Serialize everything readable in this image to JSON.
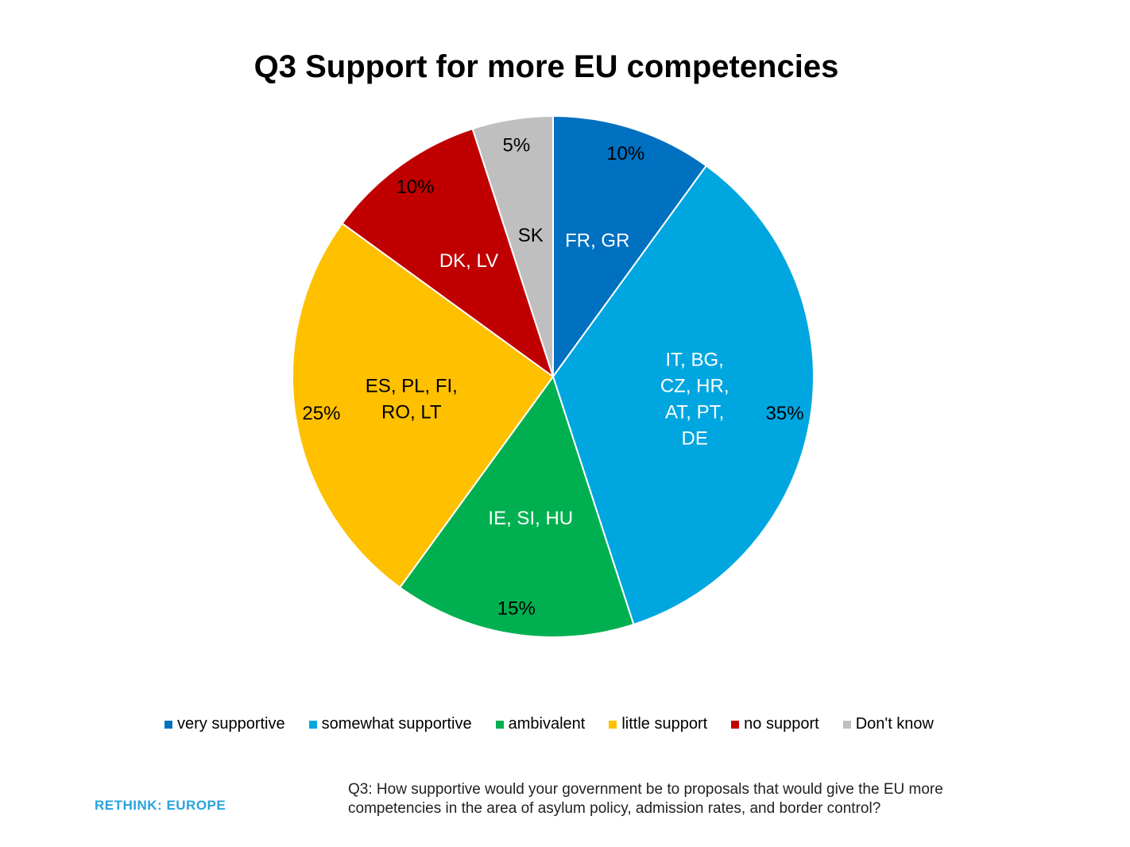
{
  "chart_data": {
    "type": "pie",
    "title": "Q3 Support for more EU competencies",
    "slices": [
      {
        "label": "very supportive",
        "value": 10,
        "value_label": "10%",
        "countries": [
          "FR, GR"
        ],
        "color": "#0070c0",
        "text_color": "#ffffff"
      },
      {
        "label": "somewhat supportive",
        "value": 35,
        "value_label": "35%",
        "countries": [
          "IT, BG,",
          "CZ, HR,",
          "AT, PT,",
          "DE"
        ],
        "color": "#00a6e0",
        "text_color": "#ffffff"
      },
      {
        "label": "ambivalent",
        "value": 15,
        "value_label": "15%",
        "countries": [
          "IE, SI, HU"
        ],
        "color": "#00b050",
        "text_color": "#ffffff"
      },
      {
        "label": "little support",
        "value": 25,
        "value_label": "25%",
        "countries": [
          "ES, PL, FI,",
          "RO, LT"
        ],
        "color": "#ffc000",
        "text_color": "#000000"
      },
      {
        "label": "no support",
        "value": 10,
        "value_label": "10%",
        "countries": [
          "DK, LV"
        ],
        "color": "#c00000",
        "text_color": "#ffffff"
      },
      {
        "label": "Don't know",
        "value": 5,
        "value_label": "5%",
        "countries": [
          "SK"
        ],
        "color": "#bfbfbf",
        "text_color": "#000000"
      }
    ],
    "legend_placement": "bottom"
  },
  "footnote": {
    "line1": "Q3: How supportive would your government be to proposals that would give the EU more",
    "line2": "competencies in the area of asylum policy, admission rates, and border control?"
  },
  "logo": "RETHINK: EUROPE"
}
